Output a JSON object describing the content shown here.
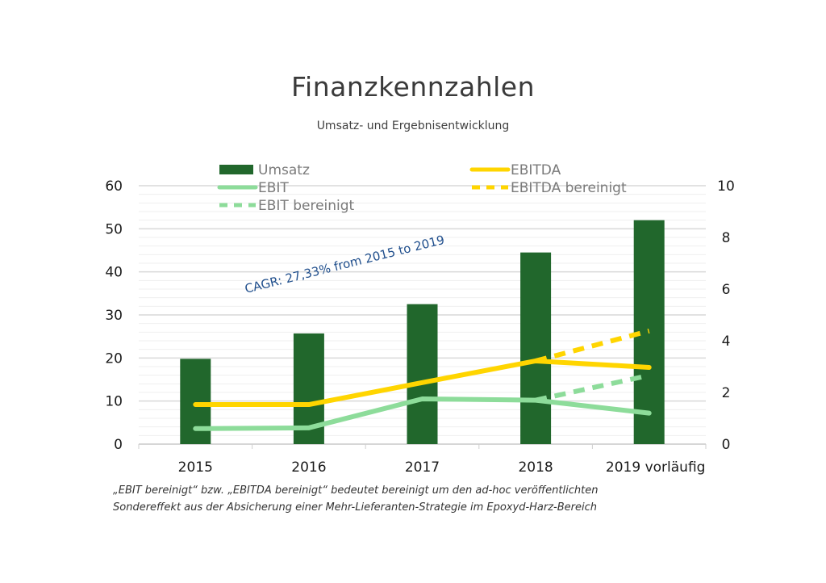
{
  "chart_data": {
    "type": "bar",
    "title": "Finanzkennzahlen",
    "subtitle": "Umsatz- und Ergebnisentwicklung",
    "categories": [
      "2015",
      "2016",
      "2017",
      "2018",
      "2019 vorläufig"
    ],
    "left_axis": {
      "ylim": [
        0,
        60
      ],
      "ticks": [
        "0",
        "10",
        "20",
        "30",
        "40",
        "50",
        "60"
      ]
    },
    "right_axis": {
      "ylim": [
        0,
        10
      ],
      "ticks": [
        "0",
        "2",
        "4",
        "6",
        "8",
        "10"
      ]
    },
    "grid": true,
    "legend_position": "top",
    "series": [
      {
        "name": "Umsatz",
        "type": "bar",
        "axis": "left",
        "color": "#21672c",
        "values": [
          19.8,
          25.7,
          32.5,
          44.5,
          52.0
        ]
      },
      {
        "name": "EBITDA",
        "type": "line",
        "axis": "right",
        "color": "#ffd500",
        "dashed": false,
        "values": [
          1.53,
          1.53,
          2.38,
          3.22,
          2.97
        ]
      },
      {
        "name": "EBIT",
        "type": "line",
        "axis": "right",
        "color": "#8ddc9a",
        "dashed": false,
        "values": [
          0.6,
          0.63,
          1.75,
          1.7,
          1.2
        ]
      },
      {
        "name": "EBITDA bereinigt",
        "type": "line",
        "axis": "right",
        "color": "#ffd500",
        "dashed": true,
        "values": [
          null,
          null,
          null,
          3.22,
          4.38
        ]
      },
      {
        "name": "EBIT bereinigt",
        "type": "line",
        "axis": "right",
        "color": "#8ddc9a",
        "dashed": true,
        "values": [
          null,
          null,
          null,
          1.7,
          2.66
        ]
      }
    ],
    "annotation": "CAGR: 27,33% from 2015 to 2019",
    "footnote": [
      "„EBIT bereinigt“ bzw. „EBITDA bereinigt“ bedeutet bereinigt um den ad-hoc veröffentlichten",
      "Sondereffekt aus der Absicherung einer Mehr-Lieferanten-Strategie im Epoxyd-Harz-Bereich"
    ]
  }
}
